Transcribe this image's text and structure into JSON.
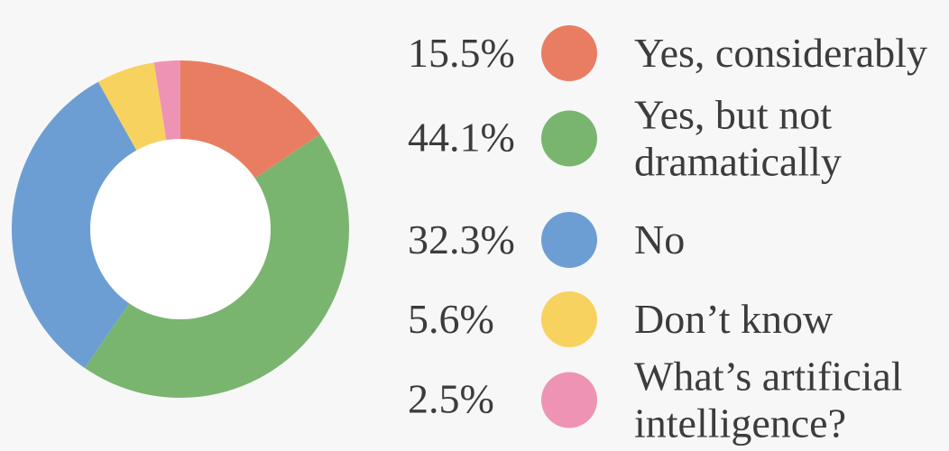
{
  "chart_data": {
    "type": "pie",
    "style": "donut",
    "categories": [
      "Yes, considerably",
      "Yes, but not dramatically",
      "No",
      "Don’t know",
      "What’s artificial intelligence?"
    ],
    "values": [
      15.5,
      44.1,
      32.3,
      5.6,
      2.5
    ],
    "unit": "%",
    "colors": [
      "#E97D62",
      "#7AB56F",
      "#6D9ED3",
      "#F8D25F",
      "#EF93B5"
    ],
    "start_angle_deg": 0,
    "direction": "clockwise",
    "inner_radius_ratio": 0.535,
    "hole_color": "#FFFFFF",
    "legend_position": "right",
    "title": ""
  },
  "legend": {
    "items": [
      {
        "percent": "15.5%",
        "label": "Yes, considerably",
        "color": "#E97D62"
      },
      {
        "percent": "44.1%",
        "label": "Yes, but not\ndramatically",
        "color": "#7AB56F"
      },
      {
        "percent": "32.3%",
        "label": "No",
        "color": "#6D9ED3"
      },
      {
        "percent": "5.6%",
        "label": "Don’t know",
        "color": "#F8D25F"
      },
      {
        "percent": "2.5%",
        "label": "What’s artificial\nintelligence?",
        "color": "#EF93B5"
      }
    ]
  },
  "colors": {
    "background": "#F7F7F8",
    "text": "#3C3C3C"
  }
}
